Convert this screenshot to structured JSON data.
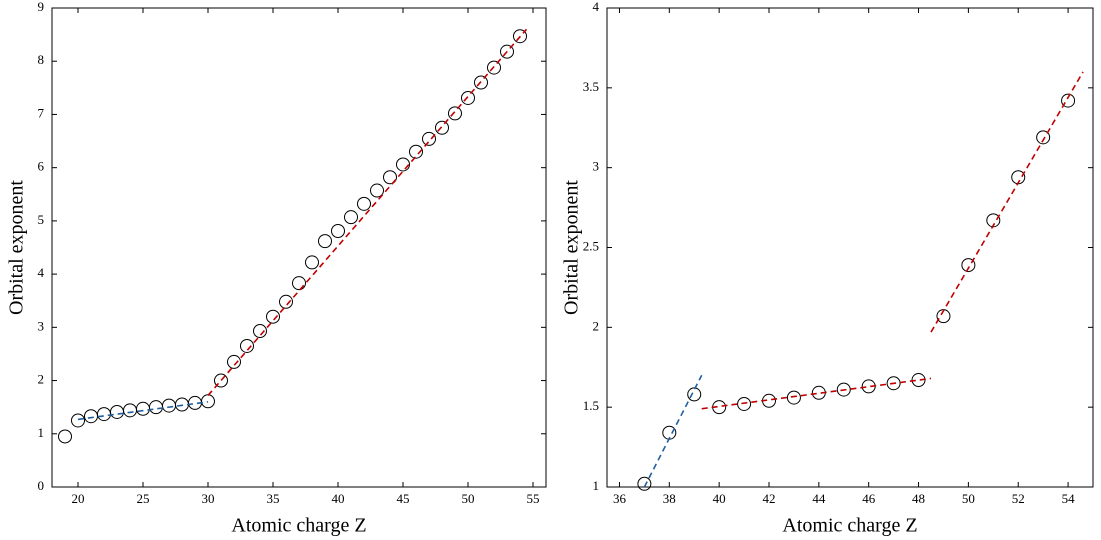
{
  "chart_data": [
    {
      "type": "scatter",
      "xlabel": "Atomic charge Z",
      "ylabel": "Orbital exponent",
      "xlim": [
        18,
        56
      ],
      "xticks": [
        20,
        25,
        30,
        35,
        40,
        45,
        50,
        55
      ],
      "ylim": [
        0,
        9
      ],
      "yticks": [
        0,
        1,
        2,
        3,
        4,
        5,
        6,
        7,
        8,
        9
      ],
      "series": [
        {
          "style": "marker",
          "color": "#000000",
          "x": [
            19,
            20,
            21,
            22,
            23,
            24,
            25,
            26,
            27,
            28,
            29,
            30,
            31,
            32,
            33,
            34,
            35,
            36,
            37,
            38,
            39,
            40,
            41,
            42,
            43,
            44,
            45,
            46,
            47,
            48,
            49,
            50,
            51,
            52,
            53,
            54
          ],
          "values": [
            0.95,
            1.25,
            1.33,
            1.37,
            1.41,
            1.44,
            1.47,
            1.5,
            1.53,
            1.55,
            1.58,
            1.61,
            2.0,
            2.35,
            2.65,
            2.93,
            3.2,
            3.48,
            3.83,
            4.22,
            4.62,
            4.81,
            5.07,
            5.32,
            5.57,
            5.82,
            6.06,
            6.3,
            6.54,
            6.75,
            7.02,
            7.31,
            7.6,
            7.88,
            8.18,
            8.47
          ]
        },
        {
          "style": "dashed",
          "color": "#1f5f9f",
          "x": [
            20,
            30
          ],
          "values": [
            1.27,
            1.6
          ]
        },
        {
          "style": "dashed",
          "color": "#c00000",
          "x": [
            30,
            54.5
          ],
          "values": [
            1.72,
            8.6
          ]
        }
      ]
    },
    {
      "type": "scatter",
      "xlabel": "Atomic charge Z",
      "ylabel": "Orbital exponent",
      "xlim": [
        35.5,
        55
      ],
      "xticks": [
        36,
        38,
        40,
        42,
        44,
        46,
        48,
        50,
        52,
        54
      ],
      "ylim": [
        1,
        4
      ],
      "yticks": [
        1,
        1.5,
        2,
        2.5,
        3,
        3.5,
        4
      ],
      "series": [
        {
          "style": "marker",
          "color": "#000000",
          "x": [
            37,
            38,
            39,
            40,
            41,
            42,
            43,
            44,
            45,
            46,
            47,
            48,
            49,
            50,
            51,
            52,
            53,
            54
          ],
          "values": [
            1.02,
            1.34,
            1.58,
            1.5,
            1.52,
            1.54,
            1.56,
            1.59,
            1.61,
            1.63,
            1.65,
            1.67,
            2.07,
            2.39,
            2.67,
            2.94,
            3.19,
            3.42
          ]
        },
        {
          "style": "dashed",
          "color": "#1f5f9f",
          "x": [
            37,
            39.3
          ],
          "values": [
            1.0,
            1.7
          ]
        },
        {
          "style": "dashed",
          "color": "#c00000",
          "x": [
            39.3,
            48.5
          ],
          "values": [
            1.49,
            1.68
          ]
        },
        {
          "style": "dashed",
          "color": "#c00000",
          "x": [
            48.5,
            54.6
          ],
          "values": [
            1.97,
            3.6
          ]
        }
      ]
    }
  ]
}
